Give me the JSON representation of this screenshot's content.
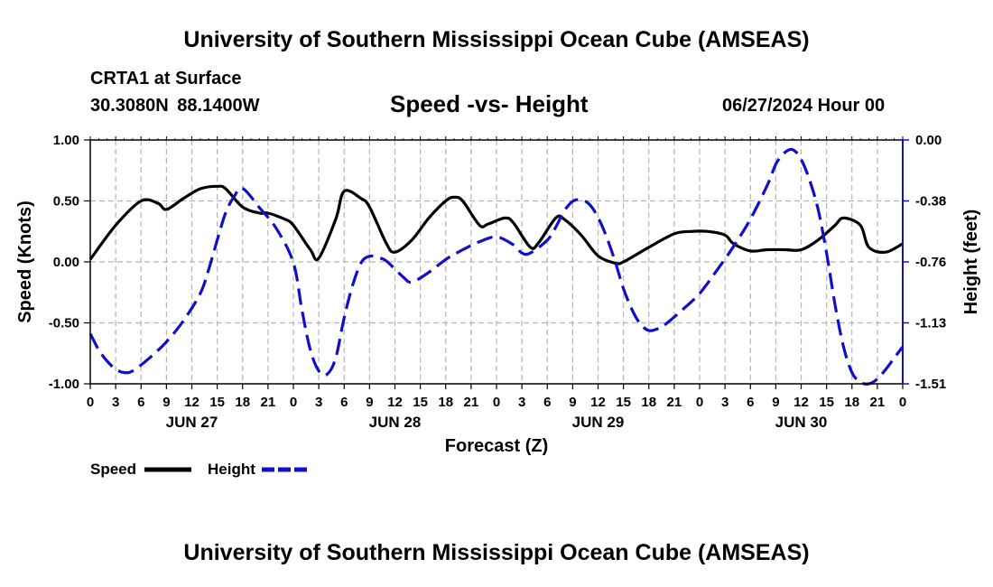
{
  "header": {
    "title": "University of Southern Mississippi Ocean Cube (AMSEAS)",
    "station": "CRTA1 at Surface",
    "location": "30.3080N  88.1400W",
    "subtitle": "Speed -vs- Height",
    "datetime": "06/27/2024 Hour 00"
  },
  "footer": {
    "title": "University of Southern Mississippi Ocean Cube (AMSEAS)"
  },
  "chart_data": {
    "type": "line",
    "title": "Speed -vs- Height",
    "xlabel": "Forecast (Z)",
    "ylabel_left": "Speed (Knots)",
    "ylabel_right": "Height (feet)",
    "x_range_hours": [
      0,
      96
    ],
    "ylim_left": [
      -1.0,
      1.0
    ],
    "ylim_right": [
      -1.51,
      0.0
    ],
    "left_ticks": [
      "1.00",
      "0.50",
      "0.00",
      "-0.50",
      "-1.00"
    ],
    "right_ticks": [
      "0.00",
      "-0.38",
      "-0.76",
      "-1.13",
      "-1.51"
    ],
    "x_ticks": [
      {
        "hour": 0,
        "label": "0"
      },
      {
        "hour": 3,
        "label": "3"
      },
      {
        "hour": 6,
        "label": "6"
      },
      {
        "hour": 9,
        "label": "9"
      },
      {
        "hour": 12,
        "label": "12"
      },
      {
        "hour": 15,
        "label": "15"
      },
      {
        "hour": 18,
        "label": "18"
      },
      {
        "hour": 21,
        "label": "21"
      },
      {
        "hour": 24,
        "label": "0"
      },
      {
        "hour": 27,
        "label": "3"
      },
      {
        "hour": 30,
        "label": "6"
      },
      {
        "hour": 33,
        "label": "9"
      },
      {
        "hour": 36,
        "label": "12"
      },
      {
        "hour": 39,
        "label": "15"
      },
      {
        "hour": 42,
        "label": "18"
      },
      {
        "hour": 45,
        "label": "21"
      },
      {
        "hour": 48,
        "label": "0"
      },
      {
        "hour": 51,
        "label": "3"
      },
      {
        "hour": 54,
        "label": "6"
      },
      {
        "hour": 57,
        "label": "9"
      },
      {
        "hour": 60,
        "label": "12"
      },
      {
        "hour": 63,
        "label": "15"
      },
      {
        "hour": 66,
        "label": "18"
      },
      {
        "hour": 69,
        "label": "21"
      },
      {
        "hour": 72,
        "label": "0"
      },
      {
        "hour": 75,
        "label": "3"
      },
      {
        "hour": 78,
        "label": "6"
      },
      {
        "hour": 81,
        "label": "9"
      },
      {
        "hour": 84,
        "label": "12"
      },
      {
        "hour": 87,
        "label": "15"
      },
      {
        "hour": 90,
        "label": "18"
      },
      {
        "hour": 93,
        "label": "21"
      },
      {
        "hour": 96,
        "label": "0"
      }
    ],
    "day_labels": [
      {
        "hour": 12,
        "label": "JUN 27"
      },
      {
        "hour": 36,
        "label": "JUN 28"
      },
      {
        "hour": 60,
        "label": "JUN 29"
      },
      {
        "hour": 84,
        "label": "JUN 30"
      }
    ],
    "series": [
      {
        "name": "Speed",
        "axis": "left",
        "color": "#000000",
        "style": "solid",
        "x": [
          0,
          3,
          6,
          8,
          9,
          11,
          13,
          15,
          16,
          18,
          20,
          21,
          23,
          24,
          26,
          27,
          29,
          30,
          32,
          33,
          35,
          36,
          38,
          40,
          42,
          43,
          44,
          46,
          47,
          49,
          50,
          52,
          53,
          55,
          56,
          58,
          60,
          62,
          63,
          66,
          69,
          71,
          73,
          75,
          76,
          78,
          80,
          82,
          84,
          86,
          88,
          89,
          91,
          92,
          94,
          96
        ],
        "y": [
          0.02,
          0.3,
          0.5,
          0.48,
          0.43,
          0.52,
          0.6,
          0.62,
          0.6,
          0.45,
          0.4,
          0.4,
          0.35,
          0.3,
          0.1,
          0.03,
          0.35,
          0.58,
          0.52,
          0.45,
          0.15,
          0.08,
          0.18,
          0.36,
          0.5,
          0.53,
          0.5,
          0.3,
          0.31,
          0.36,
          0.32,
          0.12,
          0.16,
          0.36,
          0.35,
          0.22,
          0.05,
          -0.01,
          0.0,
          0.12,
          0.23,
          0.25,
          0.25,
          0.22,
          0.15,
          0.09,
          0.1,
          0.1,
          0.1,
          0.18,
          0.3,
          0.36,
          0.3,
          0.12,
          0.08,
          0.15
        ]
      },
      {
        "name": "Height",
        "axis": "right",
        "color": "#1010c8",
        "style": "dashed",
        "x": [
          0,
          1,
          2,
          3,
          4,
          5,
          7,
          9,
          11,
          13,
          14,
          15,
          16,
          17,
          18,
          20,
          22,
          24,
          25,
          26,
          27,
          28,
          29,
          30,
          31,
          32,
          33,
          34,
          35,
          37,
          38,
          40,
          42,
          44,
          46,
          48,
          50,
          51,
          52,
          54,
          55,
          56,
          57,
          58,
          59,
          60,
          61,
          62,
          63,
          64,
          65,
          66,
          67,
          68,
          70,
          72,
          74,
          76,
          78,
          80,
          81,
          82,
          83,
          84,
          85,
          86,
          87,
          88,
          89,
          90,
          91,
          92,
          93,
          94,
          95,
          96
        ],
        "y": [
          -1.2,
          -1.3,
          -1.37,
          -1.42,
          -1.44,
          -1.43,
          -1.35,
          -1.25,
          -1.12,
          -0.95,
          -0.8,
          -0.62,
          -0.45,
          -0.35,
          -0.3,
          -0.42,
          -0.55,
          -0.76,
          -1.05,
          -1.3,
          -1.43,
          -1.45,
          -1.35,
          -1.1,
          -0.9,
          -0.76,
          -0.72,
          -0.73,
          -0.75,
          -0.85,
          -0.88,
          -0.82,
          -0.74,
          -0.68,
          -0.63,
          -0.6,
          -0.65,
          -0.7,
          -0.7,
          -0.62,
          -0.54,
          -0.44,
          -0.38,
          -0.37,
          -0.4,
          -0.48,
          -0.6,
          -0.75,
          -0.92,
          -1.05,
          -1.14,
          -1.18,
          -1.17,
          -1.14,
          -1.05,
          -0.95,
          -0.81,
          -0.66,
          -0.49,
          -0.28,
          -0.15,
          -0.08,
          -0.06,
          -0.12,
          -0.25,
          -0.43,
          -0.7,
          -1.02,
          -1.28,
          -1.44,
          -1.5,
          -1.51,
          -1.48,
          -1.42,
          -1.35,
          -1.28
        ]
      }
    ],
    "legend": [
      {
        "label": "Speed",
        "color": "#000000",
        "style": "solid"
      },
      {
        "label": "Height",
        "color": "#1010c8",
        "style": "dashed"
      }
    ],
    "grid": true
  }
}
